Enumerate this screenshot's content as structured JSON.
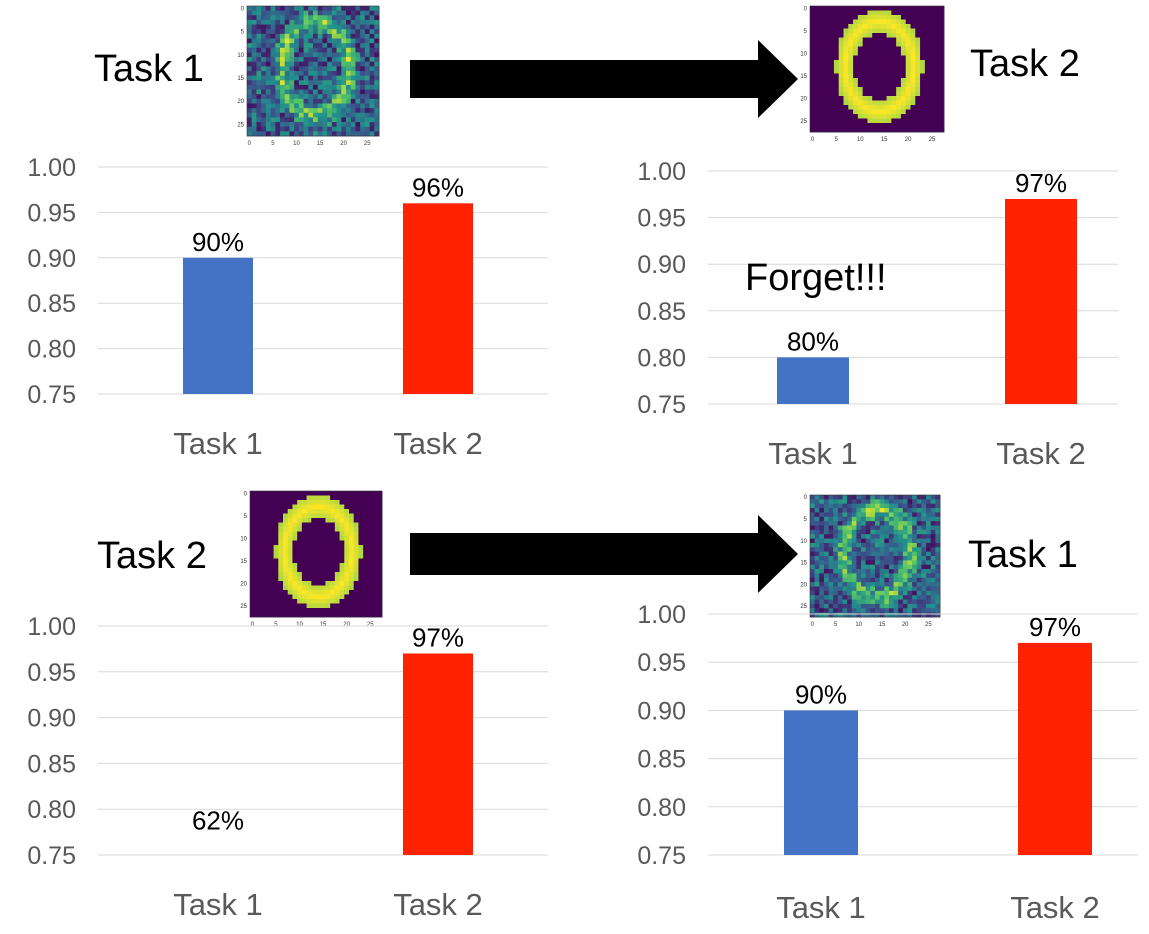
{
  "headers": {
    "top_left_task": "Task 1",
    "top_right_task": "Task 2",
    "bottom_left_task": "Task 2",
    "bottom_right_task": "Task 1"
  },
  "images": [
    {
      "name": "noisy-digit-image",
      "style": "noisy",
      "ticks_x": [
        "0",
        "5",
        "10",
        "15",
        "20",
        "25"
      ],
      "ticks_y": [
        "0",
        "5",
        "10",
        "15",
        "20",
        "25"
      ]
    },
    {
      "name": "clean-digit-image",
      "style": "clean",
      "ticks_x": [
        "0",
        "5",
        "10",
        "15",
        "20",
        "25"
      ],
      "ticks_y": [
        "0",
        "5",
        "10",
        "15",
        "20",
        "25"
      ]
    },
    {
      "name": "clean-digit-image",
      "style": "clean",
      "ticks_x": [
        "0",
        "5",
        "10",
        "15",
        "20",
        "25"
      ],
      "ticks_y": [
        "0",
        "5",
        "10",
        "15",
        "20",
        "25"
      ]
    },
    {
      "name": "noisy-digit-image",
      "style": "noisy",
      "ticks_x": [
        "0",
        "5",
        "10",
        "15",
        "20",
        "25"
      ],
      "ticks_y": [
        "0",
        "5",
        "10",
        "15",
        "20",
        "25"
      ]
    }
  ],
  "colors": {
    "task1_bar": "#4472c4",
    "task2_bar": "#ff2200",
    "gridline": "#d9d9d9",
    "tick_text": "#595959",
    "arrow": "#000000",
    "digit_clean_bg": "#440154",
    "digit_clean_fg": "#fde725",
    "digit_noisy_bg": "#31688e"
  },
  "chart_data": [
    {
      "type": "bar",
      "categories": [
        "Task 1",
        "Task 2"
      ],
      "values": [
        0.9,
        0.96
      ],
      "data_labels": [
        "90%",
        "96%"
      ],
      "ylim": [
        0.75,
        1.0
      ],
      "yticks": [
        "0.75",
        "0.80",
        "0.85",
        "0.90",
        "0.95",
        "1.00"
      ],
      "grid": true,
      "annotation": ""
    },
    {
      "type": "bar",
      "categories": [
        "Task 1",
        "Task 2"
      ],
      "values": [
        0.8,
        0.97
      ],
      "data_labels": [
        "80%",
        "97%"
      ],
      "ylim": [
        0.75,
        1.0
      ],
      "yticks": [
        "0.75",
        "0.80",
        "0.85",
        "0.90",
        "0.95",
        "1.00"
      ],
      "grid": true,
      "annotation": "Forget!!!"
    },
    {
      "type": "bar",
      "categories": [
        "Task 1",
        "Task 2"
      ],
      "values": [
        0.62,
        0.97
      ],
      "data_labels": [
        "62%",
        "97%"
      ],
      "ylim": [
        0.75,
        1.0
      ],
      "yticks": [
        "0.75",
        "0.80",
        "0.85",
        "0.90",
        "0.95",
        "1.00"
      ],
      "grid": true,
      "annotation": ""
    },
    {
      "type": "bar",
      "categories": [
        "Task 1",
        "Task 2"
      ],
      "values": [
        0.9,
        0.97
      ],
      "data_labels": [
        "90%",
        "97%"
      ],
      "ylim": [
        0.75,
        1.0
      ],
      "yticks": [
        "0.75",
        "0.80",
        "0.85",
        "0.90",
        "0.95",
        "1.00"
      ],
      "grid": true,
      "annotation": ""
    }
  ]
}
